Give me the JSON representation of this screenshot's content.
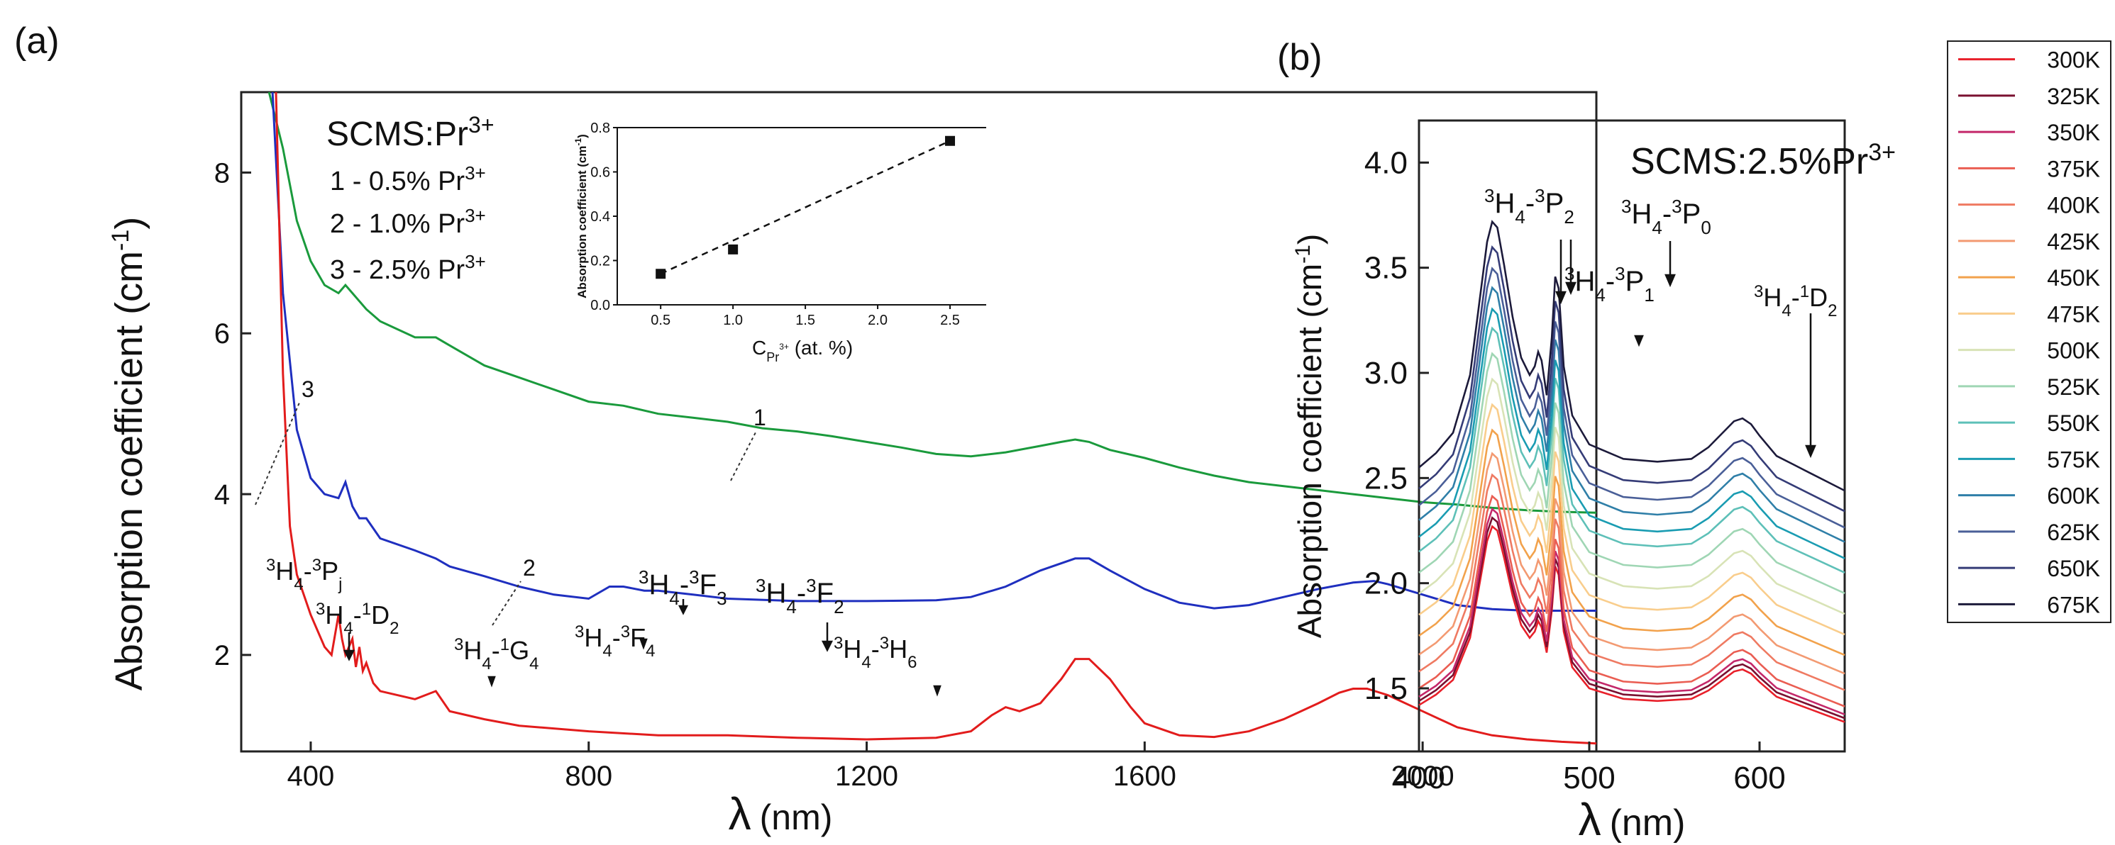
{
  "chart_data": [
    {
      "panel": "(a)",
      "type": "line",
      "xlabel_symbol": "λ",
      "xlabel_unit": "(nm)",
      "ylabel": "Absorption coefficient (cm",
      "ylabel_sup": "-1",
      "ylabel_close": ")",
      "xlim": [
        300,
        2250
      ],
      "ylim": [
        0.8,
        9
      ],
      "xticks": [
        400,
        800,
        1200,
        1600,
        2000
      ],
      "yticks": [
        2,
        4,
        6,
        8
      ],
      "legend": {
        "title": "SCMS:Pr",
        "title_sup": "3+",
        "entries": [
          {
            "text": "1 - 0.5% Pr",
            "sup": "3+"
          },
          {
            "text": "2 - 1.0% Pr",
            "sup": "3+"
          },
          {
            "text": "3 - 2.5% Pr",
            "sup": "3+"
          }
        ]
      },
      "series": [
        {
          "name": "1",
          "label": "1",
          "color": "#1a9a3c",
          "x": [
            340,
            360,
            380,
            400,
            420,
            440,
            450,
            460,
            480,
            500,
            550,
            580,
            600,
            650,
            700,
            750,
            800,
            850,
            900,
            950,
            1000,
            1050,
            1100,
            1150,
            1200,
            1250,
            1300,
            1350,
            1400,
            1450,
            1480,
            1500,
            1520,
            1550,
            1600,
            1650,
            1700,
            1750,
            1800,
            1850,
            1900,
            1950,
            2000,
            2050,
            2100,
            2150,
            2200,
            2250
          ],
          "y": [
            9.0,
            8.3,
            7.4,
            6.9,
            6.6,
            6.5,
            6.6,
            6.5,
            6.3,
            6.15,
            5.95,
            5.95,
            5.85,
            5.6,
            5.45,
            5.3,
            5.15,
            5.1,
            5.0,
            4.95,
            4.9,
            4.82,
            4.78,
            4.72,
            4.65,
            4.58,
            4.5,
            4.47,
            4.52,
            4.6,
            4.65,
            4.68,
            4.65,
            4.55,
            4.45,
            4.33,
            4.23,
            4.15,
            4.1,
            4.05,
            4.0,
            3.95,
            3.9,
            3.87,
            3.83,
            3.8,
            3.78,
            3.77
          ]
        },
        {
          "name": "2",
          "label": "2",
          "color": "#1f2fbf",
          "x": [
            345,
            360,
            380,
            400,
            420,
            440,
            450,
            460,
            470,
            480,
            500,
            550,
            580,
            600,
            650,
            700,
            750,
            800,
            830,
            850,
            880,
            900,
            950,
            1000,
            1100,
            1200,
            1300,
            1350,
            1400,
            1450,
            1500,
            1520,
            1550,
            1600,
            1650,
            1700,
            1750,
            1800,
            1850,
            1900,
            1930,
            1950,
            2000,
            2050,
            2100,
            2150,
            2200,
            2250
          ],
          "y": [
            9.0,
            6.5,
            4.8,
            4.2,
            4.0,
            3.95,
            4.15,
            3.85,
            3.7,
            3.7,
            3.45,
            3.3,
            3.2,
            3.1,
            2.98,
            2.85,
            2.75,
            2.7,
            2.85,
            2.85,
            2.8,
            2.8,
            2.75,
            2.7,
            2.67,
            2.67,
            2.68,
            2.72,
            2.85,
            3.05,
            3.2,
            3.2,
            3.05,
            2.82,
            2.65,
            2.58,
            2.62,
            2.72,
            2.82,
            2.9,
            2.92,
            2.88,
            2.75,
            2.62,
            2.57,
            2.55,
            2.55,
            2.55
          ]
        },
        {
          "name": "3",
          "label": "3",
          "color": "#e21c1c",
          "x": [
            350,
            360,
            370,
            380,
            400,
            420,
            430,
            440,
            445,
            450,
            460,
            465,
            470,
            475,
            480,
            490,
            500,
            550,
            580,
            600,
            650,
            700,
            800,
            900,
            1000,
            1100,
            1200,
            1300,
            1350,
            1380,
            1400,
            1420,
            1450,
            1480,
            1500,
            1520,
            1550,
            1580,
            1600,
            1650,
            1700,
            1750,
            1800,
            1850,
            1880,
            1900,
            1920,
            1950,
            2000,
            2050,
            2100,
            2150,
            2200,
            2250
          ],
          "y": [
            9.0,
            5.5,
            3.6,
            3.0,
            2.5,
            2.1,
            2.0,
            2.5,
            2.2,
            2.0,
            2.2,
            1.85,
            2.1,
            1.8,
            1.9,
            1.65,
            1.55,
            1.45,
            1.55,
            1.3,
            1.2,
            1.12,
            1.05,
            1.0,
            1.0,
            0.97,
            0.95,
            0.97,
            1.05,
            1.25,
            1.35,
            1.3,
            1.4,
            1.7,
            1.95,
            1.95,
            1.7,
            1.35,
            1.15,
            1.0,
            0.98,
            1.05,
            1.2,
            1.4,
            1.53,
            1.58,
            1.58,
            1.5,
            1.3,
            1.1,
            1.0,
            0.95,
            0.92,
            0.9
          ]
        }
      ],
      "annotations": [
        {
          "pre": "3",
          "a": "H",
          "a_sub": "4",
          "dash": "-",
          "pre2": "3",
          "b": "P",
          "b_sub": "j"
        },
        {
          "pre": "3",
          "a": "H",
          "a_sub": "4",
          "dash": "-",
          "pre2": "1",
          "b": "D",
          "b_sub": "2"
        },
        {
          "pre": "3",
          "a": "H",
          "a_sub": "4",
          "dash": "-",
          "pre2": "1",
          "b": "G",
          "b_sub": "4"
        },
        {
          "pre": "3",
          "a": "H",
          "a_sub": "4",
          "dash": "-",
          "pre2": "3",
          "b": "F",
          "b_sub": "4"
        },
        {
          "pre": "3",
          "a": "H",
          "a_sub": "4",
          "dash": "-",
          "pre2": "3",
          "b": "F",
          "b_sub": "3"
        },
        {
          "pre": "3",
          "a": "H",
          "a_sub": "4",
          "dash": "-",
          "pre2": "3",
          "b": "F",
          "b_sub": "2"
        },
        {
          "pre": "3",
          "a": "H",
          "a_sub": "4",
          "dash": "-",
          "pre2": "3",
          "b": "H",
          "b_sub": "6"
        }
      ],
      "inset": {
        "type": "scatter",
        "ylabel": "Absorption coefficient (cm",
        "ylabel_sup": "-1",
        "ylabel_close": ")",
        "xlabel": "C",
        "xlabel_sub": "Pr",
        "xlabel_sub_sup": "3+",
        "xlabel_unit": " (at. %)",
        "xlim": [
          0.2,
          2.75
        ],
        "ylim": [
          0,
          0.8
        ],
        "xticks": [
          "0.5",
          "1.0",
          "1.5",
          "2.0",
          "2.5"
        ],
        "yticks": [
          "0.0",
          "0.2",
          "0.4",
          "0.6",
          "0.8"
        ],
        "x": [
          0.5,
          1.0,
          2.5
        ],
        "y": [
          0.14,
          0.25,
          0.74
        ],
        "fit": {
          "x": [
            0.5,
            2.5
          ],
          "y": [
            0.14,
            0.74
          ]
        }
      }
    },
    {
      "panel": "(b)",
      "type": "line",
      "title": "SCMS:2.5%Pr",
      "title_sup": "3+",
      "xlabel_symbol": "λ",
      "xlabel_unit": "(nm)",
      "ylabel": "Absorption coefficient (cm",
      "ylabel_sup": "-1",
      "ylabel_close": ")",
      "xlim": [
        400,
        650
      ],
      "ylim": [
        1.2,
        4.2
      ],
      "xticks": [
        400,
        500,
        600
      ],
      "yticks": [
        "1.5",
        "2.0",
        "2.5",
        "3.0",
        "3.5",
        "4.0"
      ],
      "annotations": [
        {
          "pre": "3",
          "a": "H",
          "a_sub": "4",
          "dash": "-",
          "pre2": "3",
          "b": "P",
          "b_sub": "2"
        },
        {
          "pre": "3",
          "a": "H",
          "a_sub": "4",
          "dash": "-",
          "pre2": "3",
          "b": "P",
          "b_sub": "0"
        },
        {
          "pre": "3",
          "a": "H",
          "a_sub": "4",
          "dash": "-",
          "pre2": "3",
          "b": "P",
          "b_sub": "1"
        },
        {
          "pre": "3",
          "a": "H",
          "a_sub": "4",
          "dash": "-",
          "pre2": "1",
          "b": "D",
          "b_sub": "2"
        }
      ],
      "temperature_series": [
        {
          "name": "300K",
          "color": "#e8202a",
          "offset": 1.42
        },
        {
          "name": "325K",
          "color": "#7a1030",
          "offset": 1.44
        },
        {
          "name": "350K",
          "color": "#c4286a",
          "offset": 1.46
        },
        {
          "name": "375K",
          "color": "#ea5d52",
          "offset": 1.5
        },
        {
          "name": "400K",
          "color": "#ef7a62",
          "offset": 1.58
        },
        {
          "name": "425K",
          "color": "#f39a72",
          "offset": 1.66
        },
        {
          "name": "450K",
          "color": "#f2a24c",
          "offset": 1.75
        },
        {
          "name": "475K",
          "color": "#f9cd8c",
          "offset": 1.85
        },
        {
          "name": "500K",
          "color": "#d8e3b6",
          "offset": 1.95
        },
        {
          "name": "525K",
          "color": "#9fd6b4",
          "offset": 2.05
        },
        {
          "name": "550K",
          "color": "#5ec0b8",
          "offset": 2.15
        },
        {
          "name": "575K",
          "color": "#1a9cb2",
          "offset": 2.22
        },
        {
          "name": "600K",
          "color": "#2f7fa8",
          "offset": 2.3
        },
        {
          "name": "625K",
          "color": "#4a5f98",
          "offset": 2.37
        },
        {
          "name": "650K",
          "color": "#353c77",
          "offset": 2.45
        },
        {
          "name": "675K",
          "color": "#1c1a3a",
          "offset": 2.55
        }
      ],
      "shape": {
        "x": [
          400,
          410,
          420,
          430,
          435,
          440,
          443,
          446,
          450,
          455,
          460,
          465,
          468,
          470,
          472,
          475,
          478,
          480,
          482,
          485,
          490,
          500,
          520,
          540,
          560,
          570,
          580,
          585,
          590,
          595,
          600,
          610,
          620,
          630,
          640,
          650
        ],
        "dy": [
          0.0,
          0.05,
          0.12,
          0.32,
          0.55,
          0.78,
          0.85,
          0.83,
          0.7,
          0.52,
          0.38,
          0.32,
          0.35,
          0.4,
          0.37,
          0.25,
          0.45,
          0.66,
          0.62,
          0.35,
          0.18,
          0.08,
          0.03,
          0.02,
          0.03,
          0.07,
          0.13,
          0.16,
          0.17,
          0.15,
          0.11,
          0.04,
          0.01,
          -0.02,
          -0.05,
          -0.08
        ]
      }
    }
  ]
}
